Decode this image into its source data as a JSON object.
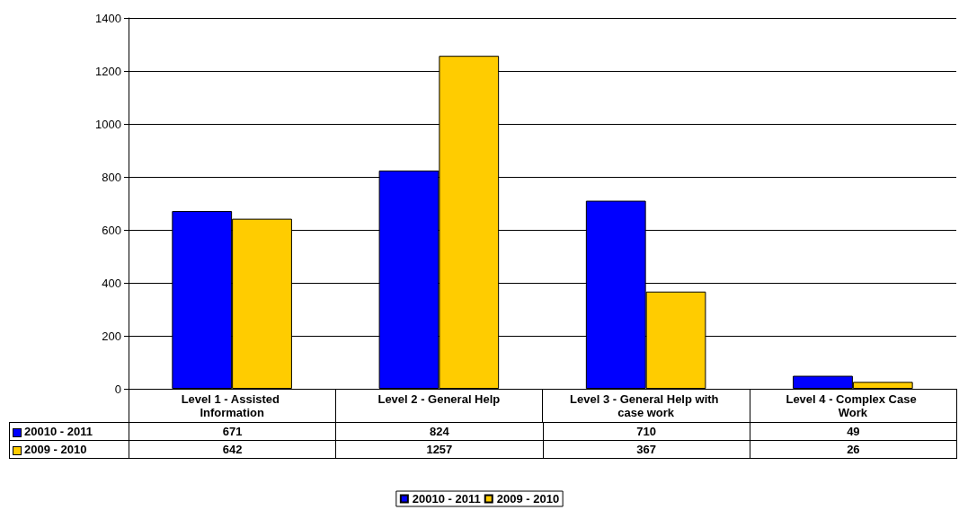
{
  "chart_data": {
    "type": "bar",
    "categories": [
      "Level 1 - Assisted Information",
      "Level 2 - General Help",
      "Level 3 - General Help with case work",
      "Level 4 - Complex Case Work"
    ],
    "series": [
      {
        "name": "20010 - 2011",
        "color": "#0000ff",
        "values": [
          671,
          824,
          710,
          49
        ]
      },
      {
        "name": "2009 - 2010",
        "color": "#ffcc00",
        "values": [
          642,
          1257,
          367,
          26
        ]
      }
    ],
    "ylim": [
      0,
      1400
    ],
    "yticks": [
      0,
      200,
      400,
      600,
      800,
      1000,
      1200,
      1400
    ],
    "grid": "y",
    "legend": "bottom",
    "data_labels": true
  }
}
